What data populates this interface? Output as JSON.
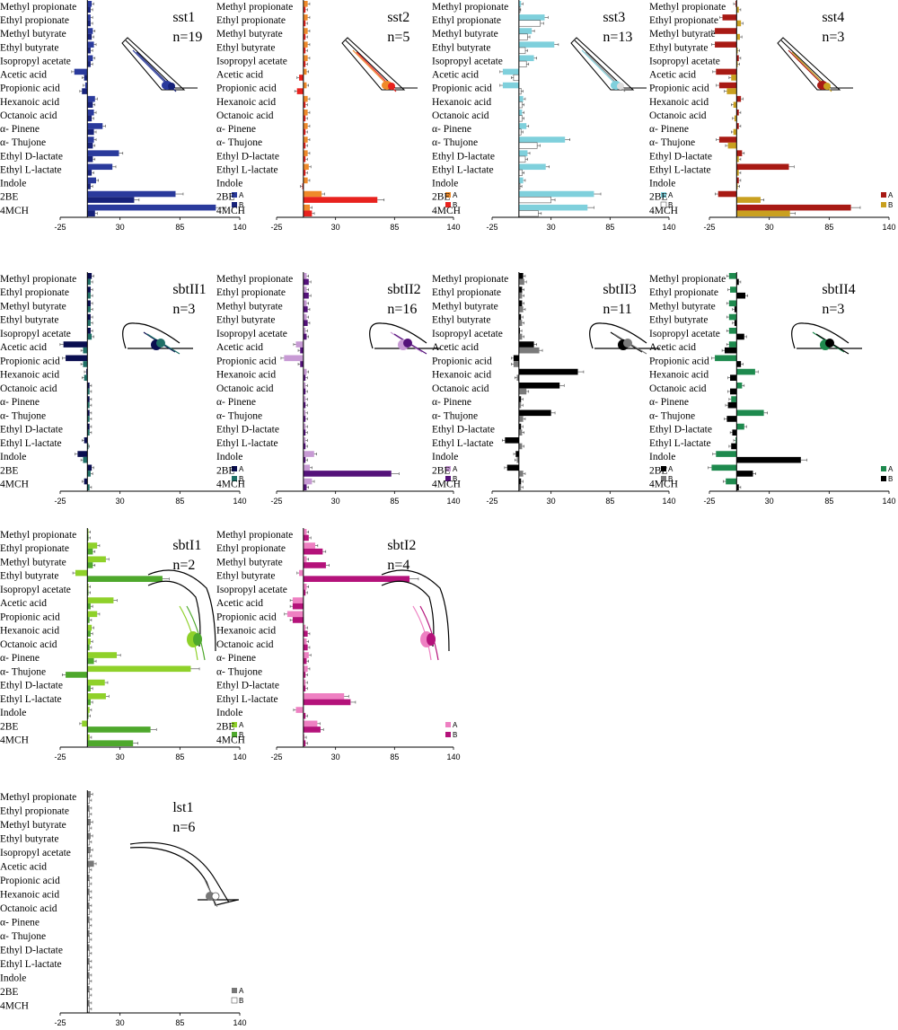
{
  "odors": [
    "Methyl propionate",
    "Ethyl propionate",
    "Methyl butyrate",
    "Ethyl butyrate",
    "Isopropyl acetate",
    "Acetic acid",
    "Propionic acid",
    "Hexanoic acid",
    "Octanoic acid",
    "α- Pinene",
    "α- Thujone",
    "Ethyl D-lactate",
    "Ethyl L-lactate",
    "Indole",
    "2BE",
    "4MCH"
  ],
  "x_ticks": [
    "-25",
    "30",
    "85",
    "140"
  ],
  "chart_data": [
    {
      "type": "bar",
      "orientation": "horizontal",
      "title": "sst1",
      "n_label": "n=19",
      "xlim": [
        -25,
        140
      ],
      "colors": {
        "A": "#2a3a9c",
        "B": "#17227a"
      },
      "legend": [
        "A",
        "B"
      ],
      "series": [
        {
          "name": "A",
          "values": [
            4,
            3,
            5,
            6,
            5,
            -12,
            -2,
            7,
            6,
            14,
            6,
            29,
            23,
            8,
            81,
            118
          ]
        },
        {
          "name": "B",
          "values": [
            3,
            3,
            4,
            3,
            3,
            -3,
            -5,
            5,
            4,
            6,
            5,
            5,
            4,
            3,
            43,
            7
          ]
        }
      ]
    },
    {
      "type": "bar",
      "orientation": "horizontal",
      "title": "sst2",
      "n_label": "n=5",
      "xlim": [
        -25,
        140
      ],
      "colors": {
        "A": "#ef8a2a",
        "B": "#e8221e"
      },
      "legend": [
        "A",
        "B"
      ],
      "series": [
        {
          "name": "A",
          "values": [
            4,
            4,
            4,
            4,
            4,
            3,
            3,
            4,
            4,
            4,
            4,
            4,
            5,
            4,
            17,
            6
          ]
        },
        {
          "name": "B",
          "values": [
            2,
            2,
            2,
            2,
            2,
            -4,
            -6,
            2,
            2,
            2,
            2,
            2,
            2,
            -1,
            69,
            8
          ]
        }
      ]
    },
    {
      "type": "bar",
      "orientation": "horizontal",
      "title": "sst3",
      "n_label": "n=13",
      "xlim": [
        -25,
        140
      ],
      "colors": {
        "A": "#7fd0dc",
        "B": "#ffffff"
      },
      "legend": [
        "A",
        "B"
      ],
      "series": [
        {
          "name": "A",
          "values": [
            2,
            24,
            12,
            33,
            14,
            -15,
            -15,
            4,
            3,
            7,
            43,
            8,
            25,
            4,
            70,
            64
          ]
        },
        {
          "name": "B",
          "values": [
            0,
            20,
            8,
            6,
            7,
            -5,
            2,
            3,
            3,
            2,
            17,
            6,
            3,
            1,
            30,
            18
          ]
        }
      ]
    },
    {
      "type": "bar",
      "orientation": "horizontal",
      "title": "sst4",
      "n_label": "n=3",
      "xlim": [
        -25,
        140
      ],
      "colors": {
        "A": "#a81a14",
        "B": "#c9a020"
      },
      "legend": [
        "A",
        "B"
      ],
      "series": [
        {
          "name": "A",
          "values": [
            -1,
            -13,
            -20,
            -20,
            2,
            -19,
            -16,
            4,
            2,
            2,
            -16,
            5,
            48,
            2,
            -17,
            105
          ]
        },
        {
          "name": "B",
          "values": [
            2,
            4,
            3,
            1,
            1,
            -5,
            -9,
            -3,
            -2,
            -3,
            -8,
            2,
            2,
            1,
            22,
            49
          ]
        }
      ]
    },
    {
      "type": "bar",
      "orientation": "horizontal",
      "title": "sbtII1",
      "n_label": "n=3",
      "xlim": [
        -25,
        140
      ],
      "colors": {
        "A": "#0a0e50",
        "B": "#1f6f66"
      },
      "legend": [
        "A",
        "B"
      ],
      "series": [
        {
          "name": "A",
          "values": [
            4,
            3,
            3,
            3,
            3,
            -22,
            -20,
            -1,
            2,
            2,
            2,
            2,
            -3,
            -9,
            4,
            -3
          ]
        },
        {
          "name": "B",
          "values": [
            3,
            3,
            3,
            3,
            4,
            -4,
            -4,
            -3,
            2,
            2,
            2,
            2,
            0,
            -4,
            3,
            2
          ]
        }
      ]
    },
    {
      "type": "bar",
      "orientation": "horizontal",
      "title": "sbtII2",
      "n_label": "n=16",
      "xlim": [
        -25,
        140
      ],
      "colors": {
        "A": "#c79ad4",
        "B": "#54127a"
      },
      "legend": [
        "A",
        "B"
      ],
      "series": [
        {
          "name": "A",
          "values": [
            3,
            3,
            3,
            3,
            2,
            -7,
            -18,
            3,
            2,
            2,
            2,
            2,
            2,
            10,
            6,
            8
          ]
        },
        {
          "name": "B",
          "values": [
            5,
            5,
            4,
            4,
            3,
            -3,
            -3,
            2,
            2,
            2,
            2,
            2,
            2,
            2,
            82,
            3
          ]
        }
      ]
    },
    {
      "type": "bar",
      "orientation": "horizontal",
      "title": "sbtII3",
      "n_label": "n=11",
      "xlim": [
        -25,
        140
      ],
      "colors": {
        "A": "#000000",
        "B": "#7a7a7a"
      },
      "legend": [
        "A",
        "B"
      ],
      "series": [
        {
          "name": "A",
          "values": [
            4,
            3,
            3,
            2,
            1,
            14,
            -5,
            55,
            38,
            2,
            30,
            2,
            -13,
            -3,
            -11,
            2
          ]
        },
        {
          "name": "B",
          "values": [
            5,
            3,
            4,
            3,
            3,
            19,
            -5,
            -2,
            7,
            2,
            4,
            3,
            3,
            -2,
            4,
            2
          ]
        }
      ]
    },
    {
      "type": "bar",
      "orientation": "horizontal",
      "title": "sbtII4",
      "n_label": "n=3",
      "xlim": [
        -25,
        140
      ],
      "colors": {
        "A": "#1e8a4e",
        "B": "#000000"
      },
      "legend": [
        "A",
        "B"
      ],
      "series": [
        {
          "name": "A",
          "values": [
            -7,
            -6,
            -7,
            -7,
            -7,
            -7,
            -20,
            17,
            5,
            -5,
            25,
            7,
            -1,
            -19,
            -23,
            -10
          ]
        },
        {
          "name": "B",
          "values": [
            2,
            8,
            -2,
            -2,
            7,
            -11,
            4,
            -6,
            -6,
            -8,
            -9,
            -4,
            -5,
            59,
            15,
            2
          ]
        }
      ]
    },
    {
      "type": "bar",
      "orientation": "horizontal",
      "title": "sbtI1",
      "n_label": "n=2",
      "xlim": [
        -25,
        140
      ],
      "colors": {
        "A": "#8fd12a",
        "B": "#4ea82c"
      },
      "legend": [
        "A",
        "B"
      ],
      "series": [
        {
          "name": "A",
          "values": [
            1,
            9,
            17,
            -11,
            1,
            24,
            9,
            4,
            3,
            27,
            95,
            16,
            17,
            2,
            -5,
            2
          ]
        },
        {
          "name": "B",
          "values": [
            1,
            5,
            5,
            69,
            1,
            3,
            2,
            3,
            2,
            6,
            -20,
            3,
            3,
            1,
            58,
            42
          ]
        }
      ]
    },
    {
      "type": "bar",
      "orientation": "horizontal",
      "title": "sbtI2",
      "n_label": "n=4",
      "xlim": [
        -25,
        140
      ],
      "colors": {
        "A": "#ee80c2",
        "B": "#b4127a"
      },
      "legend": [
        "A",
        "B"
      ],
      "series": [
        {
          "name": "A",
          "values": [
            3,
            11,
            3,
            -4,
            3,
            -10,
            -15,
            2,
            3,
            5,
            4,
            2,
            38,
            -7,
            13,
            1
          ]
        },
        {
          "name": "B",
          "values": [
            5,
            18,
            21,
            99,
            2,
            -10,
            -10,
            4,
            4,
            3,
            2,
            2,
            44,
            2,
            16,
            2
          ]
        }
      ]
    },
    {
      "type": "bar",
      "orientation": "horizontal",
      "title": "lst1",
      "n_label": "n=6",
      "xlim": [
        -25,
        140
      ],
      "colors": {
        "A": "#777777",
        "B": "#ffffff"
      },
      "legend": [
        "A",
        "B"
      ],
      "series": [
        {
          "name": "A",
          "values": [
            3,
            2,
            3,
            3,
            3,
            6,
            2,
            2,
            2,
            2,
            2,
            2,
            2,
            2,
            2,
            2
          ]
        },
        {
          "name": "B",
          "values": [
            2,
            2,
            2,
            2,
            2,
            2,
            2,
            2,
            2,
            2,
            2,
            2,
            2,
            2,
            2,
            2
          ]
        }
      ]
    }
  ]
}
